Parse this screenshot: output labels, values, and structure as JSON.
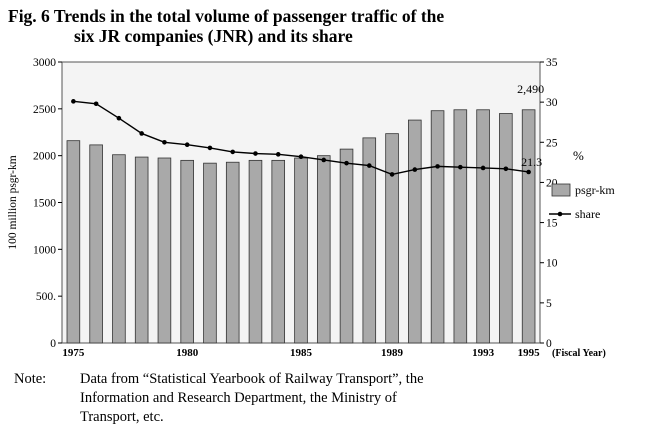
{
  "header": {
    "title_line1": "Fig. 6  Trends in the total volume of passenger traffic of the",
    "title_line2": "six JR companies (JNR) and its share"
  },
  "note": {
    "label": "Note:",
    "line1": "Data from “Statistical Yearbook of Railway Transport”, the",
    "line2": "Information and Research Department, the Ministry of",
    "line3": "Transport, etc."
  },
  "chart_data": {
    "type": "bar",
    "ylabel": "100 million psgr-km",
    "ylabel_right": "%",
    "x_unit_label": "(Fiscal Year)",
    "x": [
      1975,
      1976,
      1977,
      1978,
      1979,
      1980,
      1981,
      1982,
      1983,
      1984,
      1985,
      1986,
      1987,
      1988,
      1989,
      1990,
      1991,
      1992,
      1993,
      1994,
      1995
    ],
    "x_tick_labels": [
      "1975",
      "1980",
      "1985",
      "1989",
      "1993",
      "1995"
    ],
    "x_tick_years": [
      1975,
      1980,
      1985,
      1989,
      1993,
      1995
    ],
    "ylim": [
      0,
      3000
    ],
    "y_ticks": [
      0,
      500,
      1000,
      1500,
      2000,
      2500,
      3000
    ],
    "y_tick_labels": [
      "0",
      "500.",
      "1000",
      "1500",
      "2000",
      "2500",
      "3000"
    ],
    "y2lim": [
      0,
      35
    ],
    "y2_ticks": [
      0,
      5,
      10,
      15,
      20,
      25,
      30,
      35
    ],
    "series": [
      {
        "name": "psgr-km",
        "kind": "bar",
        "color": "#a9a9a9",
        "values": [
          2160,
          2115,
          2010,
          1985,
          1975,
          1950,
          1920,
          1930,
          1950,
          1950,
          1975,
          2000,
          2070,
          2190,
          2235,
          2380,
          2480,
          2490,
          2490,
          2450,
          2490
        ]
      },
      {
        "name": "share",
        "kind": "line",
        "axis": "right",
        "color": "#000000",
        "values": [
          30.1,
          29.8,
          28.0,
          26.1,
          25.0,
          24.7,
          24.3,
          23.8,
          23.6,
          23.5,
          23.2,
          22.8,
          22.4,
          22.1,
          21.0,
          21.6,
          22.0,
          21.9,
          21.8,
          21.7,
          21.3
        ]
      }
    ],
    "annotations": [
      {
        "text": "2,490",
        "x": 1995,
        "series": "psgr-km"
      },
      {
        "text": "21.3",
        "x": 1995,
        "series": "share"
      }
    ],
    "legend_placement": "right",
    "grid": false
  }
}
